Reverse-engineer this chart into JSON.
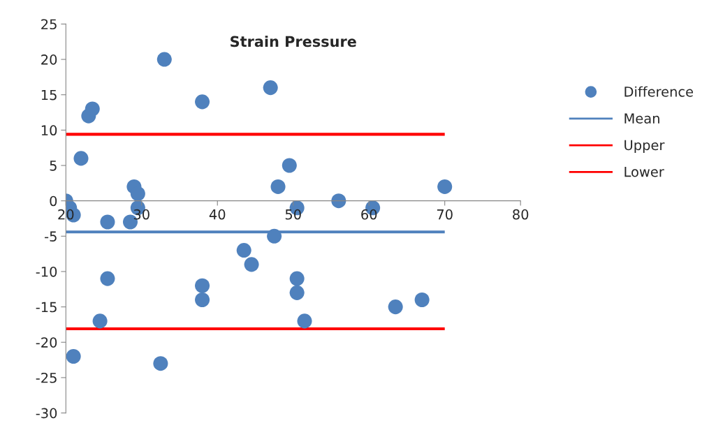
{
  "chart_data": {
    "type": "scatter",
    "title": "Strain Pressure",
    "xlim": [
      20,
      80
    ],
    "xticks": [
      20,
      30,
      40,
      50,
      60,
      70,
      80
    ],
    "ylim": [
      -30,
      25
    ],
    "yticks": [
      -30,
      -25,
      -20,
      -15,
      -10,
      -5,
      0,
      5,
      10,
      15,
      20,
      25
    ],
    "legend": "right",
    "series": [
      {
        "name": "Difference",
        "marker": "circle",
        "color": "#4f81bd",
        "x": [
          20,
          20.5,
          21,
          21,
          22,
          23,
          23.5,
          24.5,
          25.5,
          25.5,
          28.5,
          29,
          29.5,
          29.5,
          32.5,
          33,
          38,
          38,
          38,
          43.5,
          44.5,
          47,
          47.5,
          48,
          49.5,
          50.5,
          50.5,
          50.5,
          51.5,
          56,
          60.5,
          63.5,
          67,
          70
        ],
        "values": [
          0,
          -1,
          -2,
          -22,
          6,
          12,
          13,
          -17,
          -3,
          -11,
          -3,
          2,
          1,
          -1,
          -23,
          20,
          14,
          -12,
          -14,
          -7,
          -9,
          16,
          -5,
          2,
          5,
          -1,
          -11,
          -13,
          -17,
          0,
          -1,
          -15,
          -14,
          2
        ]
      },
      {
        "name": "Mean",
        "type": "line",
        "color": "#4f81bd",
        "line_style": "solid",
        "x": [
          20,
          70
        ],
        "values": [
          -4.4,
          -4.4
        ]
      },
      {
        "name": "Upper",
        "type": "line",
        "color": "#ff0000",
        "line_style": "solid",
        "x": [
          20,
          70
        ],
        "values": [
          9.4,
          9.4
        ]
      },
      {
        "name": "Lower",
        "type": "line",
        "color": "#ff0000",
        "line_style": "solid",
        "x": [
          20,
          70
        ],
        "values": [
          -18.1,
          -18.1
        ]
      }
    ]
  }
}
